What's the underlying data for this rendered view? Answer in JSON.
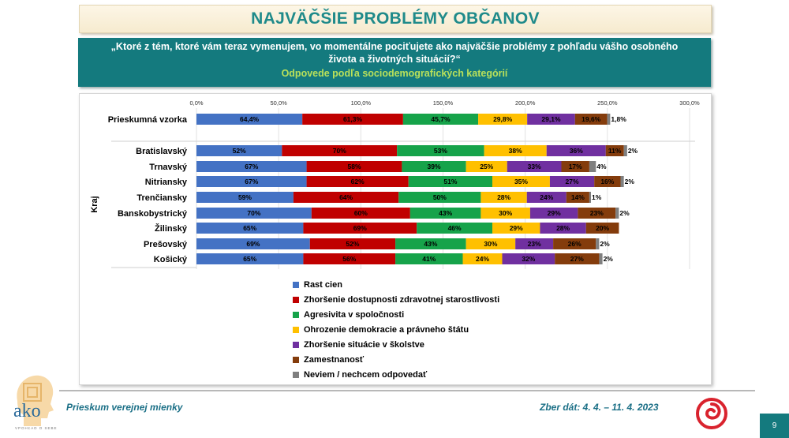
{
  "header": {
    "title": "NAJVÄČŠIE PROBLÉMY OBČANOV",
    "question": "„Ktoré z tém, ktoré vám teraz vymenujem, vo momentálne pociťujete ako najväčšie problémy z pohľadu vášho osobného života a životných situácií?“",
    "subtitle": "Odpovede podľa sociodemografických kategórií"
  },
  "footer": {
    "left": "Prieskum verejnej mienky",
    "right": "Zber dát: 4. 4. – 11. 4. 2023",
    "page": "9"
  },
  "logo": {
    "text": "ako",
    "tagline": "VPOHĽAD O SEBE"
  },
  "chart_data": {
    "type": "bar",
    "orientation": "horizontal",
    "stacked": true,
    "xlim": [
      0,
      300
    ],
    "x_ticks": [
      "0,0%",
      "50,0%",
      "100,0%",
      "150,0%",
      "200,0%",
      "250,0%",
      "300,0%"
    ],
    "group_label": "Kraj",
    "legend_position": "bottom",
    "categories": [
      "Prieskumná vzorka",
      "Bratislavský",
      "Trnavský",
      "Nitriansky",
      "Trenčiansky",
      "Banskobystrický",
      "Žilinský",
      "Prešovský",
      "Košický"
    ],
    "series": [
      {
        "name": "Rast cien",
        "color": "#4472c4",
        "values": [
          64.4,
          52,
          67,
          67,
          59,
          70,
          65,
          69,
          65
        ],
        "labels": [
          "64,4%",
          "52%",
          "67%",
          "67%",
          "59%",
          "70%",
          "65%",
          "69%",
          "65%"
        ]
      },
      {
        "name": "Zhoršenie dostupnosti zdravotnej starostlivosti",
        "color": "#c00000",
        "values": [
          61.3,
          70,
          58,
          62,
          64,
          60,
          69,
          52,
          56
        ],
        "labels": [
          "61,3%",
          "70%",
          "58%",
          "62%",
          "64%",
          "60%",
          "69%",
          "52%",
          "56%"
        ]
      },
      {
        "name": "Agresivita v spoločnosti",
        "color": "#16a34a",
        "values": [
          45.7,
          53,
          39,
          51,
          50,
          43,
          46,
          43,
          41
        ],
        "labels": [
          "45,7%",
          "53%",
          "39%",
          "51%",
          "50%",
          "43%",
          "46%",
          "43%",
          "41%"
        ]
      },
      {
        "name": "Ohrozenie demokracie a právneho štátu",
        "color": "#ffc000",
        "values": [
          29.8,
          38,
          25,
          35,
          28,
          30,
          29,
          30,
          24
        ],
        "labels": [
          "29,8%",
          "38%",
          "25%",
          "35%",
          "28%",
          "30%",
          "29%",
          "30%",
          "24%"
        ]
      },
      {
        "name": "Zhoršenie situácie v školstve",
        "color": "#7030a0",
        "values": [
          29.1,
          36,
          33,
          27,
          24,
          29,
          28,
          23,
          32
        ],
        "labels": [
          "29,1%",
          "36%",
          "33%",
          "27%",
          "24%",
          "29%",
          "28%",
          "23%",
          "32%"
        ]
      },
      {
        "name": "Zamestnanosť",
        "color": "#843c0c",
        "values": [
          19.6,
          11,
          17,
          16,
          14,
          23,
          20,
          26,
          27
        ],
        "labels": [
          "19,6%",
          "11%",
          "17%",
          "16%",
          "14%",
          "23%",
          "20%",
          "26%",
          "27%"
        ]
      },
      {
        "name": "Neviem / nechcem odpovedať",
        "color": "#7f7f7f",
        "values": [
          1.8,
          2,
          4,
          2,
          1,
          2,
          0,
          2,
          2
        ],
        "labels": [
          "1,8%",
          "2%",
          "4%",
          "2%",
          "1%",
          "2%",
          "",
          "2%",
          "2%"
        ]
      }
    ]
  }
}
